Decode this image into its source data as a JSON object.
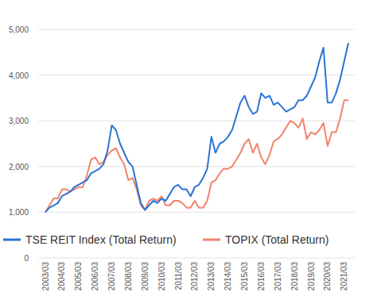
{
  "chart_data": {
    "type": "line",
    "categories": [
      "2003/03",
      null,
      null,
      null,
      "2004/03",
      null,
      null,
      null,
      "2005/03",
      null,
      null,
      null,
      "2006/03",
      null,
      null,
      null,
      "2007/03",
      null,
      null,
      null,
      "2008/03",
      null,
      null,
      null,
      "2009/03",
      null,
      null,
      null,
      "2010/03",
      null,
      null,
      null,
      "2011/03",
      null,
      null,
      null,
      "2012/03",
      null,
      null,
      null,
      "2013/03",
      null,
      null,
      null,
      "2014/03",
      null,
      null,
      null,
      "2015/03",
      null,
      null,
      null,
      "2016/03",
      null,
      null,
      null,
      "2017/03",
      null,
      null,
      null,
      "2018/03",
      null,
      null,
      null,
      "2019/03",
      null,
      null,
      null,
      "2020/03",
      null,
      null,
      null,
      "2021/03",
      null
    ],
    "series": [
      {
        "name": "TSE REIT Index (Total Return)",
        "color": "#2b73d6",
        "values": [
          1000,
          1100,
          1150,
          1200,
          1350,
          1400,
          1450,
          1550,
          1600,
          1650,
          1700,
          1850,
          1900,
          1950,
          2050,
          2350,
          2900,
          2800,
          2500,
          2300,
          2100,
          2000,
          1600,
          1200,
          1050,
          1150,
          1250,
          1200,
          1300,
          1250,
          1400,
          1550,
          1600,
          1500,
          1500,
          1350,
          1550,
          1600,
          1750,
          1950,
          2650,
          2300,
          2500,
          2550,
          2650,
          2800,
          3100,
          3400,
          3550,
          3300,
          3150,
          3200,
          3600,
          3500,
          3550,
          3350,
          3400,
          3300,
          3200,
          3250,
          3300,
          3450,
          3450,
          3550,
          3750,
          3950,
          4300,
          4600,
          3400,
          3400,
          3600,
          3900,
          4300,
          4700
        ]
      },
      {
        "name": "TOPIX (Total Return)",
        "color": "#f0846c",
        "values": [
          1000,
          1150,
          1300,
          1300,
          1500,
          1500,
          1450,
          1500,
          1550,
          1550,
          1800,
          2150,
          2200,
          2050,
          2100,
          2250,
          2350,
          2400,
          2200,
          2050,
          1700,
          1750,
          1500,
          1150,
          1050,
          1250,
          1300,
          1250,
          1350,
          1150,
          1150,
          1250,
          1250,
          1200,
          1100,
          1100,
          1250,
          1100,
          1100,
          1250,
          1650,
          1700,
          1850,
          1950,
          1950,
          2000,
          2150,
          2300,
          2500,
          2600,
          2300,
          2500,
          2200,
          2050,
          2250,
          2550,
          2600,
          2700,
          2850,
          3000,
          2950,
          2850,
          3050,
          2600,
          2750,
          2700,
          2800,
          2950,
          2450,
          2750,
          2750,
          3050,
          3450,
          3450
        ]
      }
    ],
    "ylim": [
      0,
      5000
    ],
    "yticks": [
      0,
      {
        "value": 1000,
        "label": "1,000"
      },
      {
        "value": 2000,
        "label": "2,000"
      },
      {
        "value": 3000,
        "label": "3,000"
      },
      {
        "value": 4000,
        "label": "4,000"
      },
      {
        "value": 5000,
        "label": "5,000"
      }
    ],
    "grid": true,
    "legend": "bottom"
  }
}
